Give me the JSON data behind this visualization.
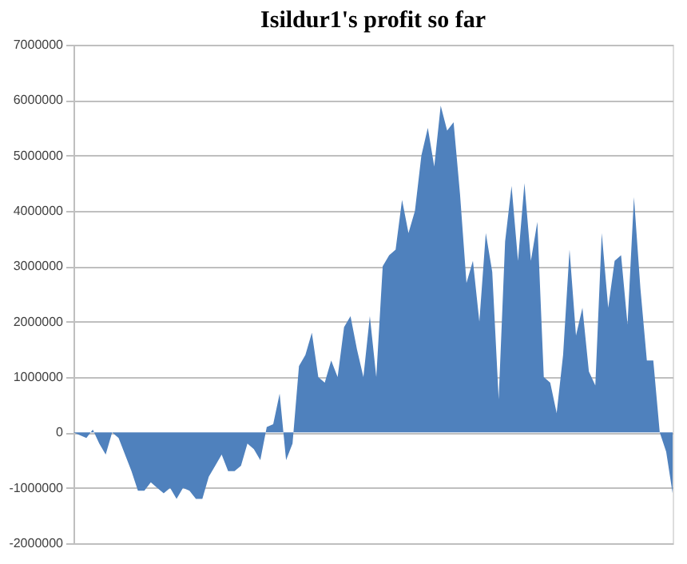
{
  "chart_data": {
    "type": "area",
    "title": "Isildur1's profit so far",
    "categories": [
      null,
      null,
      null,
      null,
      null,
      null,
      null,
      null,
      null,
      null,
      null,
      null,
      null,
      null,
      null,
      null,
      null,
      null,
      null,
      null,
      null,
      null,
      null,
      null,
      null,
      null,
      null,
      null,
      null,
      null,
      null,
      null,
      null,
      null,
      null,
      null,
      null,
      null,
      null,
      null,
      null,
      null,
      null,
      null,
      null,
      null,
      null,
      null,
      null,
      null,
      null,
      null,
      null,
      null,
      null,
      null,
      null,
      null,
      null,
      null,
      null,
      null,
      null,
      null,
      null,
      null,
      null,
      null,
      null,
      null,
      null,
      null,
      null,
      null,
      null,
      null,
      null,
      null,
      null,
      null,
      null,
      null,
      null,
      null,
      null,
      null,
      null,
      null,
      null,
      null,
      null,
      null,
      null,
      null
    ],
    "series": [
      {
        "color": "#4f81bd",
        "values": [
          0,
          -50000,
          -100000,
          50000,
          -200000,
          -400000,
          0,
          -100000,
          -400000,
          -700000,
          -1050000,
          -1050000,
          -900000,
          -1000000,
          -1100000,
          -1000000,
          -1200000,
          -1000000,
          -1050000,
          -1200000,
          -1200000,
          -800000,
          -600000,
          -400000,
          -700000,
          -700000,
          -600000,
          -200000,
          -300000,
          -500000,
          100000,
          150000,
          700000,
          -500000,
          -200000,
          1200000,
          1400000,
          1800000,
          1000000,
          900000,
          1300000,
          1000000,
          1900000,
          2100000,
          1500000,
          1000000,
          2100000,
          1000000,
          3000000,
          3200000,
          3300000,
          4200000,
          3600000,
          4000000,
          5000000,
          5500000,
          4800000,
          5900000,
          5450000,
          5600000,
          4300000,
          2700000,
          3100000,
          2000000,
          3600000,
          2900000,
          600000,
          3450000,
          4450000,
          3100000,
          4500000,
          3100000,
          3800000,
          1000000,
          900000,
          350000,
          1400000,
          3300000,
          1750000,
          2250000,
          1100000,
          850000,
          3600000,
          2250000,
          3100000,
          3200000,
          1950000,
          4250000,
          2600000,
          1300000,
          1300000,
          0,
          -350000,
          -1100000
        ]
      }
    ],
    "ylim": [
      -2000000,
      7000000
    ],
    "yticks": [
      -2000000,
      -1000000,
      0,
      1000000,
      2000000,
      3000000,
      4000000,
      5000000,
      6000000,
      7000000
    ],
    "grid": "y",
    "tick_labels": "y"
  }
}
